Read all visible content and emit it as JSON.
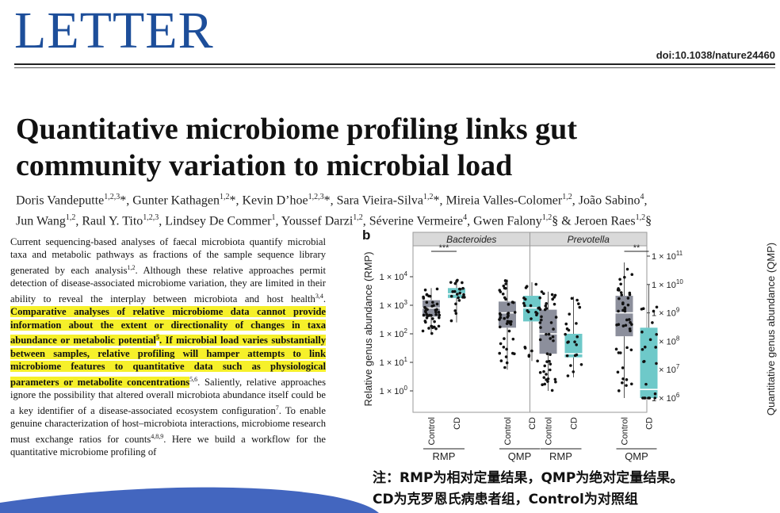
{
  "header": {
    "section": "LETTER",
    "doi": "doi:10.1038/nature24460"
  },
  "article": {
    "title_line1": "Quantitative microbiome profiling links gut",
    "title_line2": "community variation to microbial load",
    "authors": [
      {
        "name": "Doris Vandeputte",
        "sup": "1,2,3",
        "mark": "*"
      },
      {
        "name": "Gunter Kathagen",
        "sup": "1,2",
        "mark": "*"
      },
      {
        "name": "Kevin D’hoe",
        "sup": "1,2,3",
        "mark": "*"
      },
      {
        "name": "Sara Vieira-Silva",
        "sup": "1,2",
        "mark": "*"
      },
      {
        "name": "Mireia Valles-Colomer",
        "sup": "1,2",
        "mark": ""
      },
      {
        "name": "João Sabino",
        "sup": "4",
        "mark": ""
      },
      {
        "name": "Jun Wang",
        "sup": "1,2",
        "mark": ""
      },
      {
        "name": "Raul Y. Tito",
        "sup": "1,2,3",
        "mark": ""
      },
      {
        "name": "Lindsey De Commer",
        "sup": "1",
        "mark": ""
      },
      {
        "name": "Youssef Darzi",
        "sup": "1,2",
        "mark": ""
      },
      {
        "name": "Séverine Vermeire",
        "sup": "4",
        "mark": ""
      },
      {
        "name": "Gwen Falony",
        "sup": "1,2",
        "mark": "§"
      },
      {
        "name": "Jeroen Raes",
        "sup": "1,2",
        "mark": "§"
      }
    ],
    "body": {
      "s1": "Current sequencing-based analyses of faecal microbiota quantify microbial taxa and metabolic pathways as fractions of the sample sequence library generated by each analysis",
      "r1": "1,2",
      "s2": ". Although these relative approaches permit detection of disease-associated microbiome variation, they are limited in their ability to reveal the interplay between microbiota and host health",
      "r2": "3,4",
      "s3": ". ",
      "h1": "Comparative analyses of relative microbiome data cannot provide information about the extent or directionality of changes in taxa abundance or metabolic potential",
      "r3": "5",
      "h2": ". If microbial load varies substantially between samples, relative profiling will hamper attempts to link microbiome features to quantitative data such as physiological parameters or metabolite concentrations",
      "r4": "5,6",
      "s4": ". Saliently, relative approaches ignore the possibility that altered overall microbiota abundance itself could be a key identifier of a disease-associated ecosystem configuration",
      "r5": "7",
      "s5": ". To enable genuine characterization of host–microbiota interactions, microbiome research must exchange ratios for counts",
      "r6": "4,8,9",
      "s6": ". Here we build a workflow for the quantitative microbiome profiling of"
    }
  },
  "note": {
    "line1": "注：RMP为相对定量结果，QMP为绝对定量结果。",
    "line2": "CD为克罗恩氏病患者组，Control为对照组"
  },
  "colors": {
    "letter_blue": "#1d4e9a",
    "highlight": "#f6f02a",
    "box_control": "#8c8f9c",
    "box_cd": "#6ec9c9",
    "panel_strip": "#d9d9d9",
    "swoosh": "#2f55b8"
  },
  "chart_data": {
    "type": "box",
    "panel_label": "b",
    "facets": [
      "Bacteroides",
      "Prevotella"
    ],
    "groups": [
      "Control",
      "CD"
    ],
    "methods": [
      "RMP",
      "QMP"
    ],
    "left_axis_label": "Relative genus abundance (RMP)",
    "right_axis_label": "Quantitative genus abundance (QMP)",
    "left_ticks": [
      {
        "label": "1 × 10",
        "exp": "4",
        "value": 10000
      },
      {
        "label": "1 × 10",
        "exp": "3",
        "value": 1000
      },
      {
        "label": "1 × 10",
        "exp": "2",
        "value": 100
      },
      {
        "label": "1 × 10",
        "exp": "1",
        "value": 10
      },
      {
        "label": "1 × 10",
        "exp": "0",
        "value": 1
      }
    ],
    "right_ticks": [
      {
        "label": "1 × 10",
        "exp": "11",
        "value": 100000000000
      },
      {
        "label": "1 × 10",
        "exp": "10",
        "value": 10000000000
      },
      {
        "label": "1 × 10",
        "exp": "9",
        "value": 1000000000
      },
      {
        "label": "1 × 10",
        "exp": "8",
        "value": 100000000
      },
      {
        "label": "1 × 10",
        "exp": "7",
        "value": 10000000
      },
      {
        "label": "1 × 10",
        "exp": "6",
        "value": 1000000
      }
    ],
    "log_scale": true,
    "boxes": [
      {
        "facet": "Bacteroides",
        "method": "RMP",
        "group": "Control",
        "min": 100,
        "q1": 400,
        "median": 800,
        "q3": 1500,
        "max": 4000,
        "n": 45
      },
      {
        "facet": "Bacteroides",
        "method": "RMP",
        "group": "CD",
        "min": 250,
        "q1": 1800,
        "median": 2500,
        "q3": 4000,
        "max": 8000,
        "n": 22
      },
      {
        "facet": "Bacteroides",
        "method": "QMP",
        "group": "Control",
        "min": 10000000,
        "q1": 300000000,
        "median": 1000000000,
        "q3": 2500000000,
        "max": 15000000000,
        "n": 45
      },
      {
        "facet": "Bacteroides",
        "method": "QMP",
        "group": "CD",
        "min": 20000000,
        "q1": 500000000,
        "median": 1500000000,
        "q3": 4000000000,
        "max": 12000000000,
        "n": 22
      },
      {
        "facet": "Prevotella",
        "method": "RMP",
        "group": "Control",
        "min": 1,
        "q1": 20,
        "median": 100,
        "q3": 700,
        "max": 3000,
        "n": 45
      },
      {
        "facet": "Prevotella",
        "method": "RMP",
        "group": "CD",
        "min": 3,
        "q1": 15,
        "median": 20,
        "q3": 100,
        "max": 2000,
        "n": 22
      },
      {
        "facet": "Prevotella",
        "method": "QMP",
        "group": "Control",
        "min": 1000000,
        "q1": 150000000,
        "median": 1000000000,
        "q3": 4000000000,
        "max": 60000000000,
        "n": 45
      },
      {
        "facet": "Prevotella",
        "method": "QMP",
        "group": "CD",
        "min": 1000000,
        "q1": 1000000,
        "median": 2000000,
        "q3": 300000000,
        "max": 10000000000,
        "n": 22
      }
    ],
    "significance": [
      {
        "facet": "Bacteroides",
        "method": "RMP",
        "label": "***"
      },
      {
        "facet": "Prevotella",
        "method": "QMP",
        "label": "**"
      }
    ]
  }
}
